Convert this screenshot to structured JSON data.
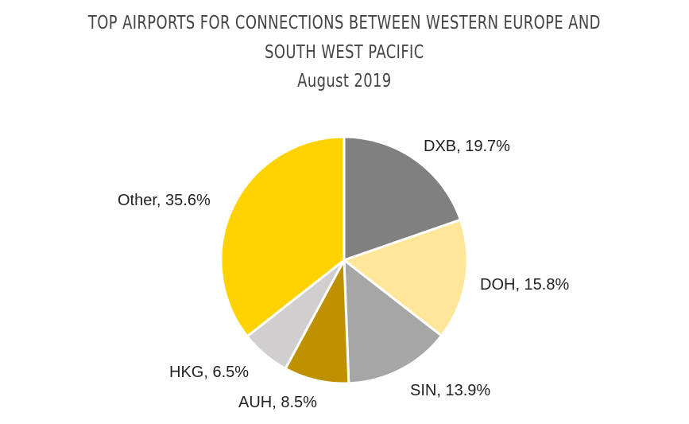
{
  "chart_data": {
    "type": "pie",
    "title_lines": [
      "TOP AIRPORTS FOR CONNECTIONS BETWEEN WESTERN EUROPE AND",
      "SOUTH WEST PACIFIC",
      "August 2019"
    ],
    "slices": [
      {
        "label": "DXB",
        "value": 19.7,
        "text": "DXB, 19.7%",
        "color": "#808080"
      },
      {
        "label": "DOH",
        "value": 15.8,
        "text": "DOH, 15.8%",
        "color": "#FFE699"
      },
      {
        "label": "SIN",
        "value": 13.9,
        "text": "SIN, 13.9%",
        "color": "#A6A6A6"
      },
      {
        "label": "AUH",
        "value": 8.5,
        "text": "AUH, 8.5%",
        "color": "#BF9000"
      },
      {
        "label": "HKG",
        "value": 6.5,
        "text": "HKG, 6.5%",
        "color": "#D0CECE"
      },
      {
        "label": "Other",
        "value": 35.6,
        "text": "Other, 35.6%",
        "color": "#FFD200"
      }
    ],
    "start_angle": "12 o'clock",
    "direction": "clockwise",
    "legend": "none (data labels beside slices)"
  }
}
